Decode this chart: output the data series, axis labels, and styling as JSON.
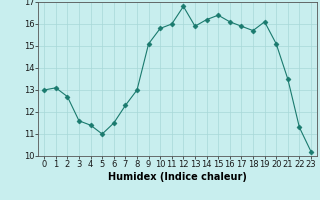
{
  "x": [
    0,
    1,
    2,
    3,
    4,
    5,
    6,
    7,
    8,
    9,
    10,
    11,
    12,
    13,
    14,
    15,
    16,
    17,
    18,
    19,
    20,
    21,
    22,
    23
  ],
  "y": [
    13.0,
    13.1,
    12.7,
    11.6,
    11.4,
    11.0,
    11.5,
    12.3,
    13.0,
    15.1,
    15.8,
    16.0,
    16.8,
    15.9,
    16.2,
    16.4,
    16.1,
    15.9,
    15.7,
    16.1,
    15.1,
    13.5,
    11.3,
    10.2
  ],
  "xlabel": "Humidex (Indice chaleur)",
  "ylim": [
    10,
    17
  ],
  "xlim": [
    -0.5,
    23.5
  ],
  "yticks": [
    10,
    11,
    12,
    13,
    14,
    15,
    16,
    17
  ],
  "xticks": [
    0,
    1,
    2,
    3,
    4,
    5,
    6,
    7,
    8,
    9,
    10,
    11,
    12,
    13,
    14,
    15,
    16,
    17,
    18,
    19,
    20,
    21,
    22,
    23
  ],
  "line_color": "#1a7a6e",
  "marker": "D",
  "marker_size": 2.5,
  "bg_color": "#c8eeee",
  "grid_color": "#a8d8d8",
  "tick_fontsize": 6,
  "xlabel_fontsize": 7
}
